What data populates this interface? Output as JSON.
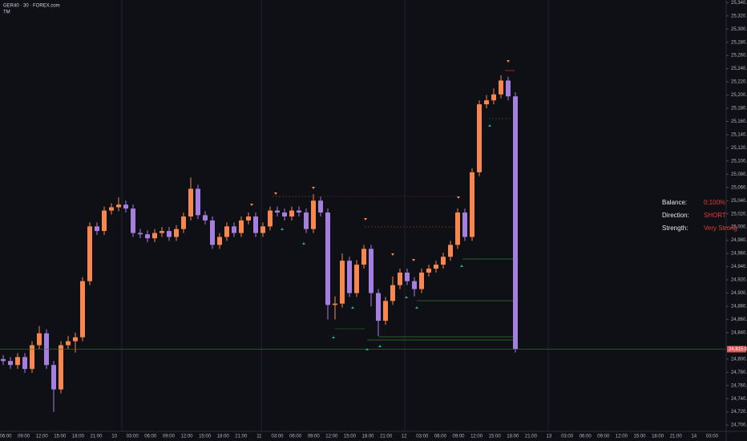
{
  "chart_data": {
    "type": "candlestick",
    "title": "GER40 · 30 · FOREX.com",
    "subtitle": "TM",
    "up_color": "#f7874f",
    "down_color": "#a57fdf",
    "ylim": [
      24688,
      25344
    ],
    "yticks": [
      {
        "value": 24700,
        "label": "24,700.0"
      },
      {
        "value": 24720,
        "label": "24,720.0"
      },
      {
        "value": 24740,
        "label": "24,740.0"
      },
      {
        "value": 24760,
        "label": "24,760.0"
      },
      {
        "value": 24780,
        "label": "24,780.0"
      },
      {
        "value": 24800,
        "label": "24,800.0"
      },
      {
        "value": 24840,
        "label": "24,840.0"
      },
      {
        "value": 24860,
        "label": "24,860.0"
      },
      {
        "value": 24880,
        "label": "24,880.0"
      },
      {
        "value": 24900,
        "label": "24,900.0"
      },
      {
        "value": 24920,
        "label": "24,920.0"
      },
      {
        "value": 24940,
        "label": "24,940.0"
      },
      {
        "value": 24960,
        "label": "24,960.0"
      },
      {
        "value": 24980,
        "label": "24,980.0"
      },
      {
        "value": 25000,
        "label": "25,000.0"
      },
      {
        "value": 25020,
        "label": "25,020.0"
      },
      {
        "value": 25040,
        "label": "25,040.0"
      },
      {
        "value": 25060,
        "label": "25,060.0"
      },
      {
        "value": 25080,
        "label": "25,080.0"
      },
      {
        "value": 25100,
        "label": "25,100.0"
      },
      {
        "value": 25120,
        "label": "25,120.0"
      },
      {
        "value": 25140,
        "label": "25,140.0"
      },
      {
        "value": 25160,
        "label": "25,160.0"
      },
      {
        "value": 25180,
        "label": "25,180.0"
      },
      {
        "value": 25200,
        "label": "25,200.0"
      },
      {
        "value": 25220,
        "label": "25,220.0"
      },
      {
        "value": 25240,
        "label": "25,240.0"
      },
      {
        "value": 25260,
        "label": "25,260.0"
      },
      {
        "value": 25280,
        "label": "25,280.0"
      },
      {
        "value": 25300,
        "label": "25,300.0"
      },
      {
        "value": 25320,
        "label": "25,320.0"
      },
      {
        "value": 25340,
        "label": "25,340.0"
      }
    ],
    "last_price": {
      "value": 24815.0,
      "label": "24,815.0"
    },
    "x_labels": [
      "06:00",
      "09:00",
      "12:00",
      "15:00",
      "18:00",
      "21:00",
      "10",
      "03:00",
      "06:00",
      "09:00",
      "12:00",
      "15:00",
      "18:00",
      "21:00",
      "11",
      "03:00",
      "06:00",
      "09:00",
      "12:00",
      "15:00",
      "18:00",
      "21:00",
      "12",
      "03:00",
      "06:00",
      "09:00",
      "12:00",
      "15:00",
      "18:00",
      "21:00",
      "13",
      "03:00",
      "06:00",
      "09:00",
      "12:00",
      "15:00",
      "18:00",
      "21:00",
      "14",
      "03:00"
    ],
    "open": [
      24800,
      24797,
      24791,
      24803,
      24785,
      24821,
      24839,
      24791,
      24754,
      24821,
      24827,
      24833,
      24918,
      25001,
      24994,
      25025,
      25030,
      25034,
      25028,
      24991,
      24989,
      24983,
      24991,
      24994,
      24985,
      24997,
      25016,
      25058,
      25018,
      25010,
      24973,
      24985,
      25001,
      24991,
      25010,
      25016,
      24991,
      25001,
      25025,
      25022,
      25016,
      25025,
      25022,
      24997,
      25040,
      25022,
      24882,
      24884,
      24949,
      24900,
      24943,
      24967,
      24900,
      24858,
      24888,
      24912,
      24931,
      24918,
      24906,
      24931,
      24937,
      24943,
      24955,
      24973,
      25022,
      24985,
      25083,
      25186,
      25192,
      25201,
      25222,
      25198
    ],
    "high": [
      24806,
      24803,
      24809,
      24809,
      24827,
      24850,
      24845,
      24797,
      24827,
      24835,
      24840,
      24924,
      25007,
      25007,
      25031,
      25036,
      25045,
      25040,
      25034,
      24997,
      24995,
      24997,
      25000,
      25000,
      25003,
      25022,
      25075,
      25064,
      25024,
      25016,
      24991,
      25007,
      25007,
      25016,
      25022,
      25022,
      25007,
      25031,
      25031,
      25028,
      25031,
      25031,
      25028,
      25050,
      25046,
      25028,
      24895,
      24960,
      24955,
      24950,
      24973,
      24973,
      24906,
      24894,
      24925,
      24937,
      24937,
      24924,
      24937,
      24943,
      24949,
      24961,
      24979,
      25028,
      25028,
      25089,
      25192,
      25200,
      25210,
      25230,
      25228,
      25204
    ],
    "low": [
      24791,
      24785,
      24785,
      24779,
      24779,
      24815,
      24785,
      24720,
      24748,
      24815,
      24810,
      24827,
      24912,
      24988,
      24988,
      25019,
      25024,
      25022,
      24985,
      24983,
      24977,
      24977,
      24985,
      24979,
      24979,
      24991,
      25010,
      25012,
      25004,
      24967,
      24967,
      24979,
      24985,
      24985,
      25004,
      24985,
      24985,
      24995,
      25016,
      25010,
      25010,
      25016,
      24991,
      24991,
      25016,
      24860,
      24860,
      24878,
      24894,
      24894,
      24937,
      24880,
      24835,
      24852,
      24882,
      24906,
      24912,
      24895,
      24900,
      24925,
      24931,
      24937,
      24949,
      24967,
      24979,
      24979,
      25077,
      25180,
      25186,
      25195,
      25192,
      24810
    ],
    "close": [
      24797,
      24791,
      24803,
      24785,
      24821,
      24839,
      24791,
      24754,
      24821,
      24827,
      24833,
      24918,
      25001,
      24994,
      25025,
      25030,
      25034,
      25028,
      24991,
      24989,
      24983,
      24991,
      24994,
      24985,
      24997,
      25016,
      25058,
      25018,
      25010,
      24973,
      24985,
      25001,
      24991,
      25010,
      25016,
      24991,
      25001,
      25025,
      25022,
      25016,
      25025,
      25022,
      24997,
      25040,
      25022,
      24882,
      24884,
      24949,
      24900,
      24943,
      24967,
      24900,
      24858,
      24888,
      24912,
      24931,
      24918,
      24906,
      24931,
      24937,
      24943,
      24955,
      24973,
      25022,
      24985,
      25083,
      25186,
      25192,
      25201,
      25222,
      25198,
      24815
    ]
  },
  "info": [
    {
      "label": "Balance:",
      "value": "0:100%"
    },
    {
      "label": "Direction:",
      "value": "SHORT"
    },
    {
      "label": "Strength:",
      "value": "Very Strong"
    }
  ]
}
